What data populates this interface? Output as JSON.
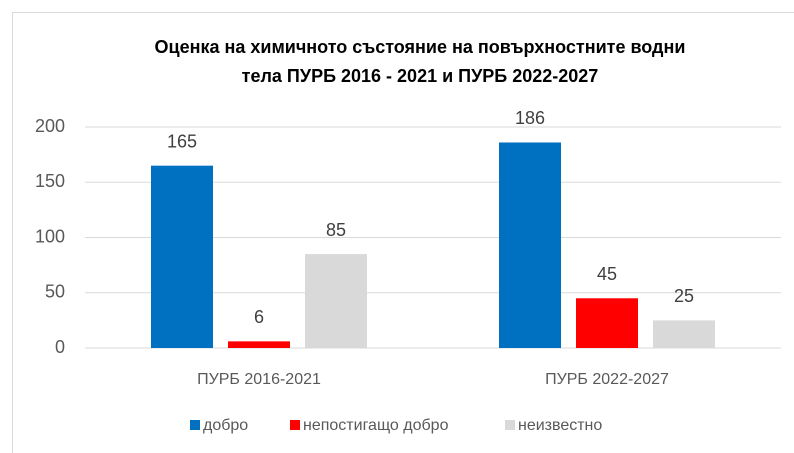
{
  "chart_data": {
    "type": "bar",
    "title": [
      "Оценка на химичното състояние на повърхностните водни",
      "тела ПУРБ 2016 - 2021 и ПУРБ 2022-2027"
    ],
    "categories": [
      "ПУРБ 2016-2021",
      "ПУРБ 2022-2027"
    ],
    "series": [
      {
        "name": "добро",
        "color": "#0070c0",
        "values": [
          165,
          186
        ]
      },
      {
        "name": "непостигащо добро",
        "color": "#ff0000",
        "values": [
          6,
          45
        ]
      },
      {
        "name": "неизвестно",
        "color": "#d9d9d9",
        "values": [
          85,
          25
        ]
      }
    ],
    "ylim": [
      0,
      200
    ],
    "yticks": [
      0,
      50,
      100,
      150,
      200
    ],
    "grid": true,
    "legend": "bottom"
  }
}
